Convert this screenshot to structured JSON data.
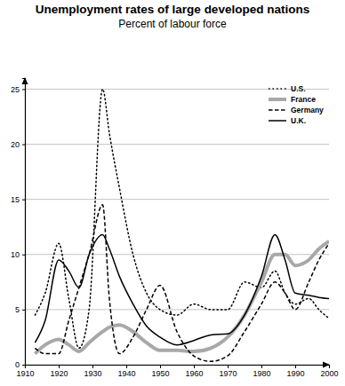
{
  "chart_data": {
    "type": "line",
    "title": "Unemployment rates of large developed nations",
    "subtitle": "Percent of labour force",
    "x": [
      1913,
      1916,
      1920,
      1923,
      1926,
      1929,
      1933,
      1935,
      1938,
      1942,
      1946,
      1950,
      1955,
      1960,
      1965,
      1970,
      1975,
      1980,
      1984,
      1987,
      1990,
      1994,
      1997,
      2000
    ],
    "series": [
      {
        "name": "U.S.",
        "color": "#000000",
        "line_style": "dotted",
        "values": [
          4.5,
          6.5,
          11,
          6,
          1.5,
          5,
          25,
          21,
          16,
          10,
          6.5,
          5,
          4.5,
          5.5,
          5,
          5,
          7.5,
          7,
          8.5,
          6.5,
          5.5,
          6,
          5,
          4.2
        ]
      },
      {
        "name": "France",
        "color": "#a8a8a8",
        "line_style": "solid",
        "values": [
          1,
          1.8,
          2.3,
          1.8,
          1.2,
          2,
          3,
          3.4,
          3.6,
          3,
          2,
          1.3,
          1.3,
          1.2,
          1.5,
          2.5,
          4.5,
          7.5,
          10,
          10,
          9,
          9.5,
          10.5,
          11.2
        ]
      },
      {
        "name": "Germany",
        "color": "#000000",
        "line_style": "dashed",
        "values": [
          1.5,
          1,
          1,
          4,
          7,
          10,
          14.5,
          6,
          1,
          2.5,
          5,
          7.2,
          3,
          0.8,
          0.3,
          0.8,
          3,
          5.5,
          7.5,
          6.5,
          5,
          7.5,
          9.5,
          11
        ]
      },
      {
        "name": "U.K.",
        "color": "#000000",
        "line_style": "solid",
        "values": [
          2,
          4,
          9.5,
          8.5,
          7,
          10,
          11.8,
          10.5,
          8,
          5.5,
          3.5,
          2.5,
          1.8,
          2.2,
          2.7,
          2.8,
          4.5,
          8,
          11.8,
          9.5,
          6.5,
          6.3,
          6.1,
          6
        ]
      }
    ],
    "xlim": [
      1910,
      2000
    ],
    "xticks": [
      1910,
      1920,
      1930,
      1940,
      1950,
      1960,
      1970,
      1980,
      1990,
      2000
    ],
    "ylim": [
      0,
      26
    ],
    "yticks": [
      0,
      5,
      10,
      15,
      20,
      25
    ],
    "grid": true,
    "legend": "upper right"
  }
}
